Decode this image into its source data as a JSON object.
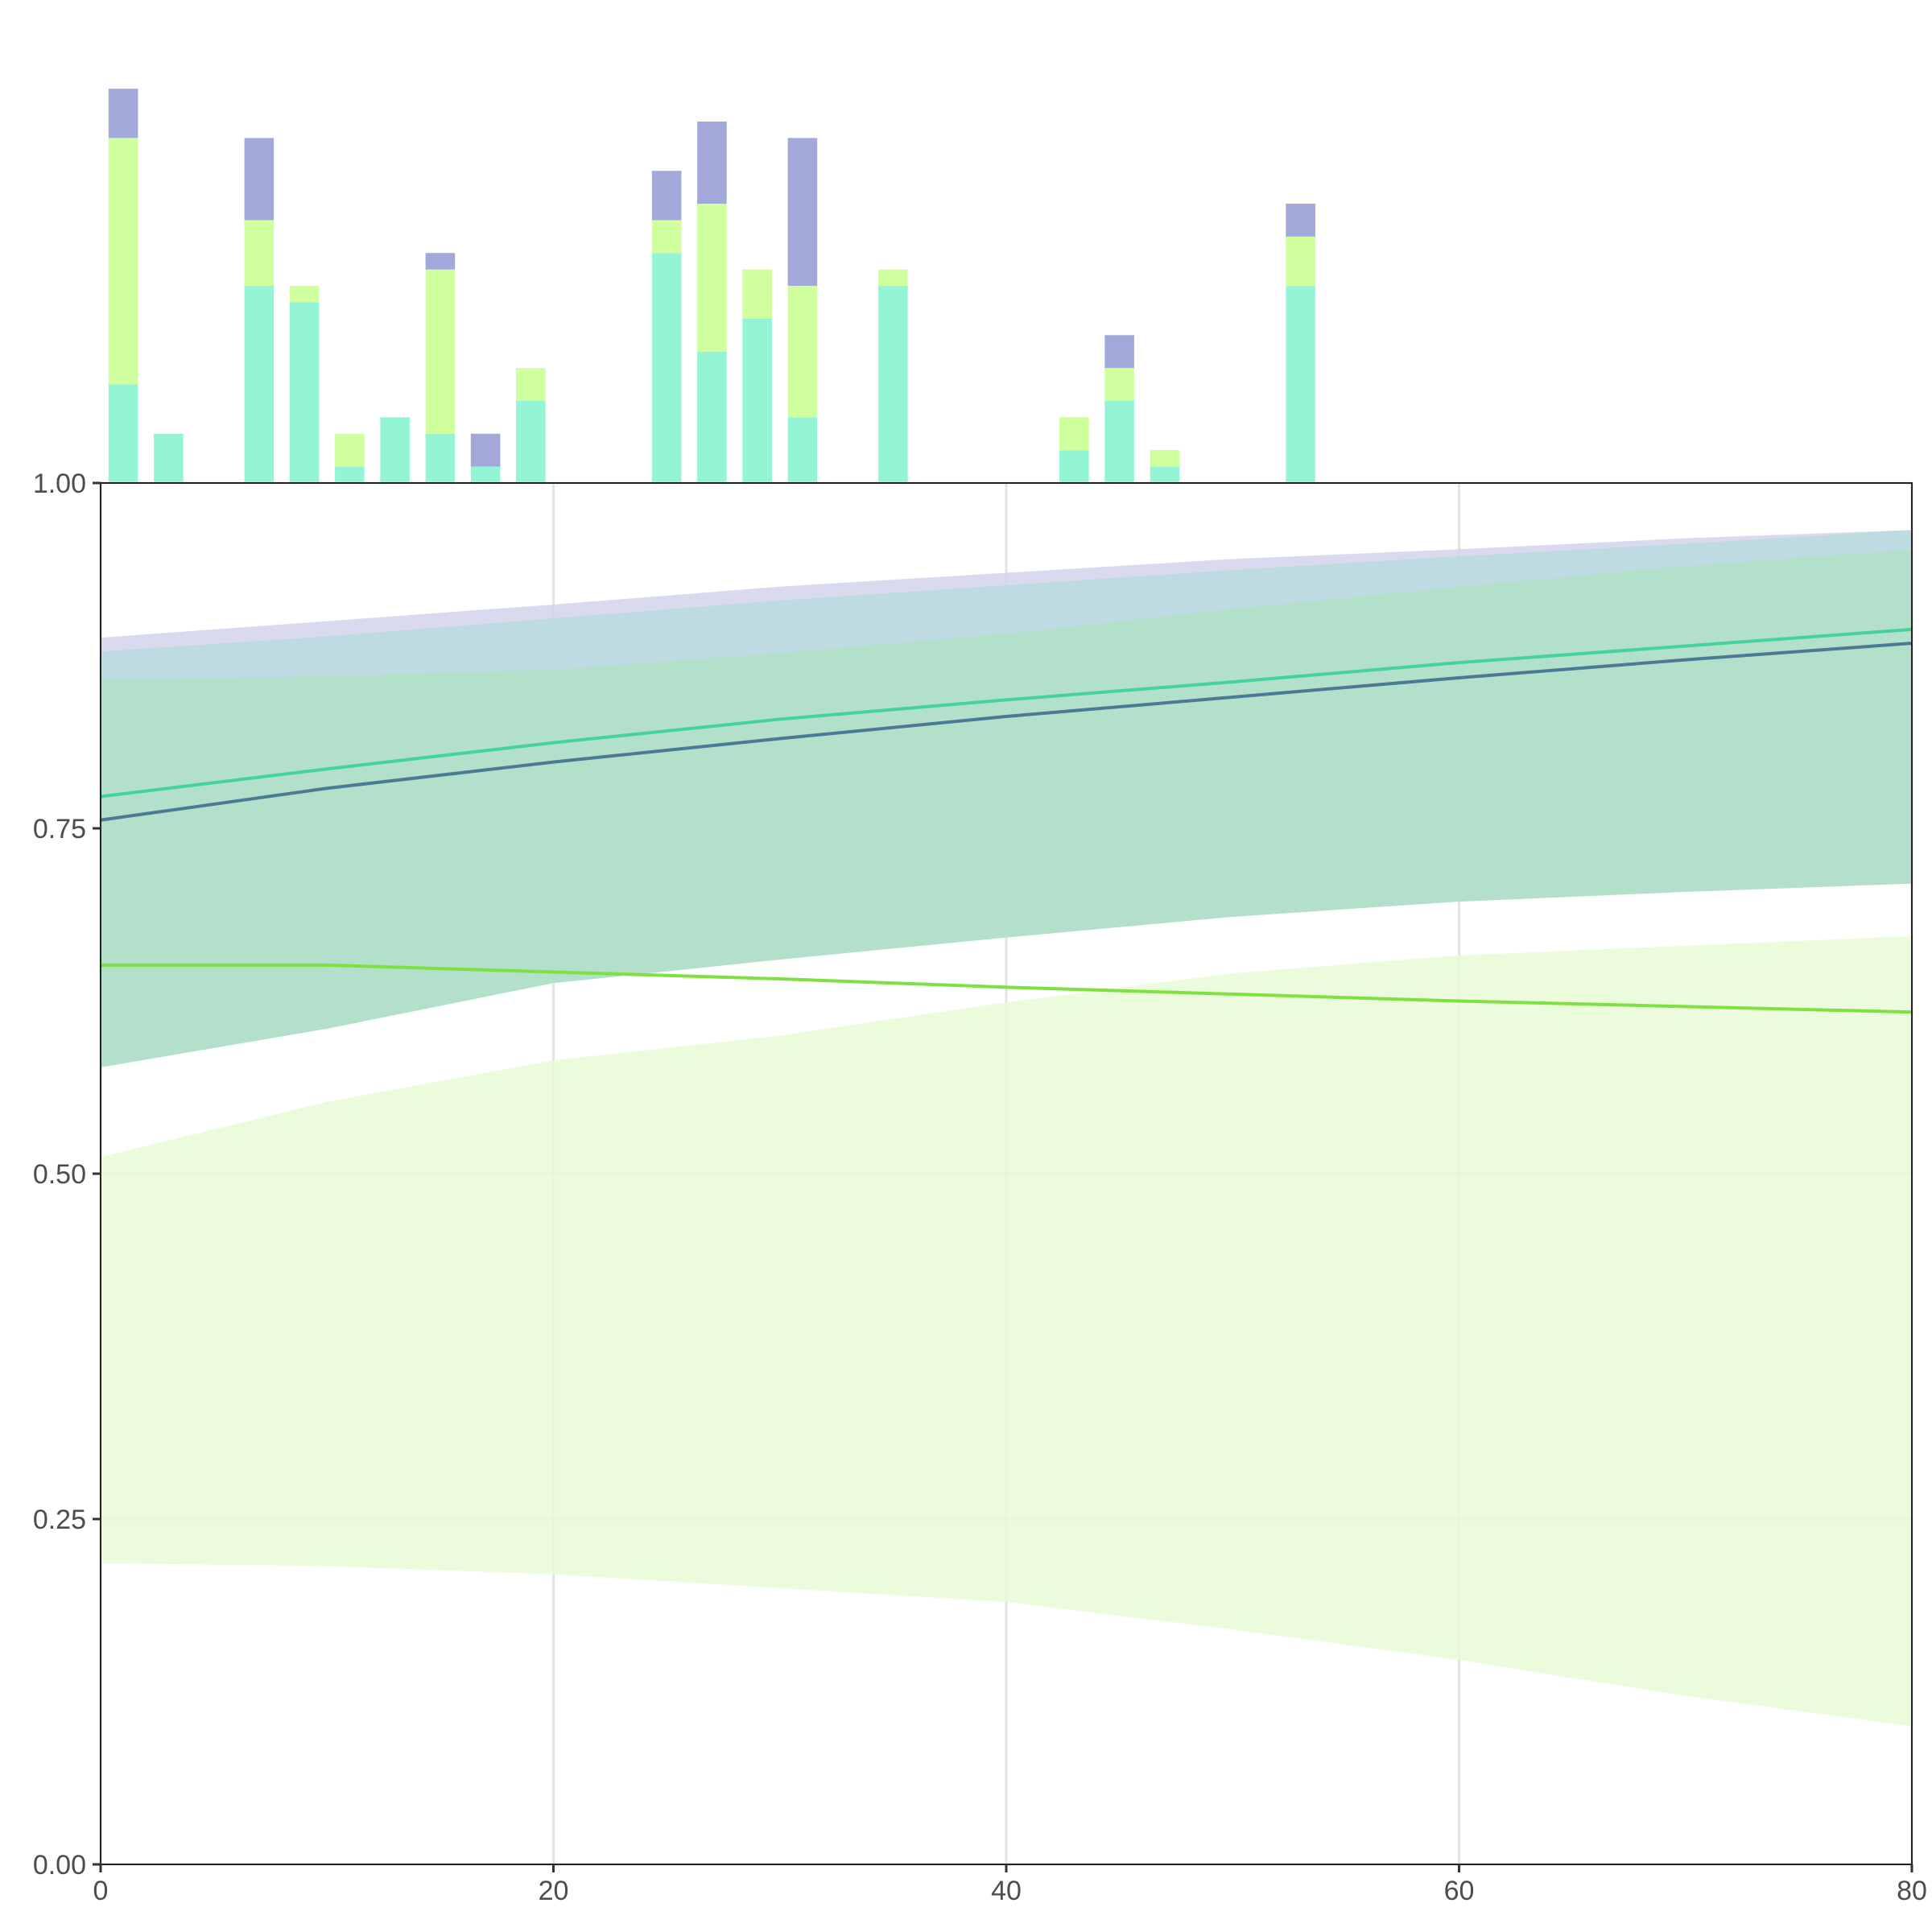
{
  "chart_data": [
    {
      "type": "bar",
      "stacked": true,
      "panel": "marginal histogram (top)",
      "bin_width": 2,
      "x": [
        1,
        3,
        5,
        7,
        9,
        11,
        13,
        15,
        17,
        19,
        21,
        23,
        25,
        27,
        29,
        31,
        33,
        35,
        37,
        39,
        41,
        43,
        45,
        47,
        49,
        51,
        53
      ],
      "series": [
        {
          "color": "#94f5d6",
          "values": [
            6,
            3,
            0,
            12,
            11,
            1,
            4,
            3,
            1,
            5,
            0,
            0,
            14,
            8,
            10,
            4,
            0,
            12,
            0,
            0,
            0,
            2,
            5,
            1,
            0,
            0,
            12
          ]
        },
        {
          "color": "#d0ff9e",
          "values": [
            15,
            0,
            0,
            4,
            1,
            2,
            0,
            10,
            0,
            2,
            0,
            0,
            2,
            9,
            3,
            8,
            0,
            1,
            0,
            0,
            0,
            2,
            2,
            1,
            0,
            0,
            3
          ]
        },
        {
          "color": "#a2a8d9",
          "values": [
            3,
            0,
            0,
            5,
            0,
            0,
            0,
            1,
            2,
            0,
            0,
            0,
            3,
            5,
            0,
            9,
            0,
            0,
            0,
            0,
            0,
            0,
            2,
            0,
            0,
            0,
            2
          ]
        }
      ],
      "ylim": [
        0,
        24.5
      ],
      "axis": "hidden"
    },
    {
      "type": "line",
      "panel": "main",
      "x_ticks": [
        "0",
        "20",
        "40",
        "60",
        "80"
      ],
      "y_ticks": [
        "0.00",
        "0.25",
        "0.50",
        "0.75",
        "1.00"
      ],
      "xlim": [
        0,
        80
      ],
      "ylim": [
        0,
        1
      ],
      "grid": true,
      "series": [
        {
          "color": "#7fe040",
          "band_color": "#e8fbd6",
          "x": [
            0,
            10,
            20,
            30,
            40,
            50,
            60,
            70,
            80
          ],
          "line": [
            0.651,
            0.651,
            0.646,
            0.641,
            0.635,
            0.63,
            0.625,
            0.621,
            0.617
          ],
          "lower": [
            0.218,
            0.216,
            0.21,
            0.2,
            0.19,
            0.17,
            0.148,
            0.122,
            0.1
          ],
          "upper": [
            0.512,
            0.552,
            0.582,
            0.6,
            0.624,
            0.645,
            0.658,
            0.665,
            0.672
          ]
        },
        {
          "color": "#9c9fd6",
          "band_color": "#d3d3ec",
          "x": [
            0,
            10,
            20,
            30,
            40,
            50,
            60,
            70,
            80
          ],
          "line": [
            0.756,
            0.779,
            0.798,
            0.815,
            0.831,
            0.845,
            0.859,
            0.872,
            0.884
          ],
          "lower": [
            0.577,
            0.605,
            0.638,
            0.655,
            0.671,
            0.686,
            0.697,
            0.704,
            0.71
          ],
          "upper": [
            0.888,
            0.9,
            0.912,
            0.925,
            0.935,
            0.945,
            0.952,
            0.96,
            0.966
          ]
        },
        {
          "color": "#45d39a",
          "band_color": "#aae0c4",
          "x": [
            0,
            10,
            20,
            30,
            40,
            50,
            60,
            70,
            80
          ],
          "line": [
            0.773,
            0.793,
            0.812,
            0.829,
            0.843,
            0.856,
            0.87,
            0.882,
            0.894
          ],
          "lower": [
            0.577,
            0.605,
            0.638,
            0.655,
            0.671,
            0.686,
            0.697,
            0.704,
            0.71
          ],
          "upper": [
            0.858,
            0.86,
            0.865,
            0.877,
            0.891,
            0.909,
            0.925,
            0.94,
            0.952
          ]
        },
        {
          "color": "#4a7a96",
          "band_color": "#b8dadf",
          "x": [
            0,
            10,
            20,
            30,
            40,
            50,
            60,
            70,
            80
          ],
          "line": [
            0.756,
            0.779,
            0.798,
            0.815,
            0.831,
            0.845,
            0.859,
            0.872,
            0.884
          ],
          "lower": [
            0.858,
            0.86,
            0.865,
            0.877,
            0.891,
            0.909,
            0.925,
            0.94,
            0.952
          ],
          "upper": [
            0.878,
            0.889,
            0.902,
            0.915,
            0.926,
            0.937,
            0.947,
            0.956,
            0.966
          ]
        }
      ]
    }
  ]
}
